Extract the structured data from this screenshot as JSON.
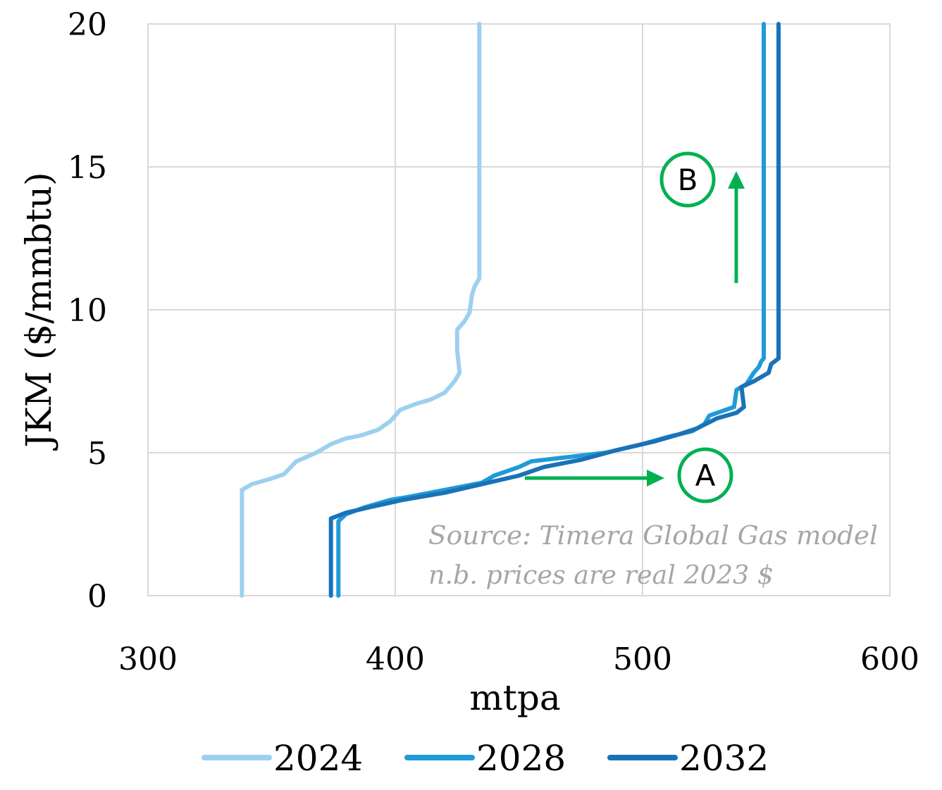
{
  "chart_data": {
    "type": "line",
    "xlabel": "mtpa",
    "ylabel": "JKM ($/mmbtu)",
    "xlim": [
      300,
      600
    ],
    "ylim": [
      0,
      20
    ],
    "x_ticks": [
      "300",
      "400",
      "500",
      "600"
    ],
    "y_ticks": [
      "0",
      "5",
      "10",
      "15",
      "20"
    ],
    "grid": true,
    "legend_position": "bottom",
    "annotations": {
      "source": "Source: Timera Global Gas model",
      "note": "n.b. prices are real 2023 $",
      "marker_a": "A",
      "marker_b": "B"
    },
    "colors": {
      "grid": "#d9d9d9",
      "arrow": "#00b050"
    },
    "series": [
      {
        "name": "2024",
        "color": "#9dd0ef",
        "points": [
          [
            338,
            0
          ],
          [
            338,
            3.5
          ],
          [
            338,
            3.7
          ],
          [
            342,
            3.9
          ],
          [
            350,
            4.1
          ],
          [
            355,
            4.25
          ],
          [
            360,
            4.7
          ],
          [
            368,
            5.0
          ],
          [
            374,
            5.3
          ],
          [
            380,
            5.5
          ],
          [
            386,
            5.6
          ],
          [
            393,
            5.8
          ],
          [
            398,
            6.1
          ],
          [
            402,
            6.5
          ],
          [
            408,
            6.7
          ],
          [
            414,
            6.85
          ],
          [
            420,
            7.1
          ],
          [
            424,
            7.5
          ],
          [
            426,
            7.8
          ],
          [
            425,
            8.6
          ],
          [
            425,
            9.3
          ],
          [
            428,
            9.6
          ],
          [
            430,
            9.9
          ],
          [
            431,
            10.5
          ],
          [
            432,
            10.8
          ],
          [
            434,
            11.1
          ],
          [
            434,
            13
          ],
          [
            434,
            20
          ]
        ]
      },
      {
        "name": "2028",
        "color": "#1f9bd7",
        "points": [
          [
            377,
            0
          ],
          [
            377,
            2.6
          ],
          [
            380,
            2.85
          ],
          [
            388,
            3.1
          ],
          [
            398,
            3.35
          ],
          [
            405,
            3.45
          ],
          [
            420,
            3.7
          ],
          [
            435,
            3.95
          ],
          [
            440,
            4.2
          ],
          [
            450,
            4.5
          ],
          [
            455,
            4.7
          ],
          [
            470,
            4.85
          ],
          [
            485,
            5.0
          ],
          [
            500,
            5.3
          ],
          [
            510,
            5.55
          ],
          [
            520,
            5.75
          ],
          [
            525,
            6.0
          ],
          [
            527,
            6.3
          ],
          [
            537,
            6.6
          ],
          [
            538,
            7.2
          ],
          [
            542,
            7.4
          ],
          [
            545,
            7.8
          ],
          [
            547,
            8.0
          ],
          [
            548,
            8.2
          ],
          [
            549,
            8.3
          ],
          [
            549,
            12
          ],
          [
            549,
            20
          ]
        ]
      },
      {
        "name": "2032",
        "color": "#1a72b8",
        "points": [
          [
            374,
            0
          ],
          [
            374,
            2.7
          ],
          [
            380,
            2.9
          ],
          [
            390,
            3.1
          ],
          [
            398,
            3.25
          ],
          [
            403,
            3.35
          ],
          [
            420,
            3.6
          ],
          [
            440,
            4.0
          ],
          [
            450,
            4.2
          ],
          [
            460,
            4.5
          ],
          [
            475,
            4.75
          ],
          [
            490,
            5.1
          ],
          [
            505,
            5.4
          ],
          [
            515,
            5.65
          ],
          [
            522,
            5.85
          ],
          [
            530,
            6.2
          ],
          [
            538,
            6.4
          ],
          [
            541,
            6.6
          ],
          [
            540,
            7.3
          ],
          [
            545,
            7.5
          ],
          [
            551,
            7.8
          ],
          [
            552,
            8.1
          ],
          [
            555,
            8.3
          ],
          [
            555,
            12
          ],
          [
            555,
            20
          ]
        ]
      }
    ]
  }
}
